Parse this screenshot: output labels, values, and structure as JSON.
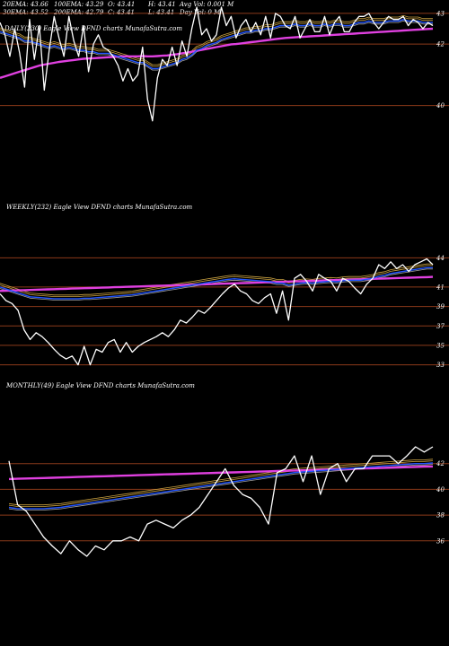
{
  "header": {
    "row1": [
      "20EMA: 43.66",
      "100EMA: 43.29",
      "O: 43.41",
      "H: 43.41",
      "Avg Vol: 0.001 M"
    ],
    "row2": [
      "30EMA: 43.52",
      "200EMA: 42.79",
      "C: 43.41",
      "L: 43.41",
      "Day Vol: 0  M"
    ]
  },
  "colors": {
    "background": "#000000",
    "price": "#ffffff",
    "ema20": "#2255ff",
    "ema200": "#e040e0",
    "gridline": "#8b3a1a",
    "ema_other": "#c8a040"
  },
  "chart_data": [
    {
      "type": "line",
      "title": "DAILY(230) Eagle  View  DFND charts MunafaSutra.com",
      "yticks": [
        43,
        42,
        40
      ],
      "ylim": [
        39.2,
        43.2
      ],
      "price": [
        42.7,
        42.3,
        41.6,
        42.5,
        41.7,
        40.6,
        42.8,
        41.5,
        42.6,
        40.5,
        41.8,
        42.9,
        42.2,
        41.6,
        42.9,
        42.1,
        41.6,
        42.6,
        41.1,
        42.0,
        42.3,
        41.9,
        41.8,
        41.6,
        41.3,
        40.8,
        41.2,
        40.8,
        41.0,
        41.9,
        40.2,
        39.5,
        40.9,
        41.5,
        41.3,
        41.9,
        41.3,
        42.1,
        41.6,
        42.5,
        43.2,
        42.3,
        42.5,
        42.1,
        42.3,
        43.2,
        42.6,
        42.9,
        42.2,
        42.6,
        42.8,
        42.4,
        42.7,
        42.3,
        42.9,
        42.2,
        43.0,
        42.9,
        42.6,
        42.5,
        42.9,
        42.2,
        42.5,
        42.8,
        42.4,
        42.4,
        42.9,
        42.3,
        42.7,
        42.9,
        42.4,
        42.4,
        42.7,
        42.9,
        42.9,
        43.0,
        42.7,
        42.5,
        42.7,
        42.9,
        42.8,
        42.8,
        42.9,
        42.6,
        42.8,
        42.7,
        42.5,
        42.7,
        42.6
      ],
      "ema20": [
        42.4,
        42.35,
        42.3,
        42.25,
        42.2,
        42.1,
        42.1,
        42.05,
        42.0,
        41.95,
        41.9,
        41.95,
        41.9,
        41.85,
        41.9,
        41.85,
        41.8,
        41.8,
        41.75,
        41.75,
        41.7,
        41.7,
        41.7,
        41.65,
        41.6,
        41.55,
        41.5,
        41.45,
        41.4,
        41.4,
        41.3,
        41.2,
        41.2,
        41.25,
        41.3,
        41.35,
        41.4,
        41.5,
        41.55,
        41.65,
        41.8,
        41.85,
        41.95,
        42.0,
        42.05,
        42.15,
        42.2,
        42.25,
        42.3,
        42.35,
        42.4,
        42.4,
        42.45,
        42.45,
        42.5,
        42.5,
        42.55,
        42.6,
        42.6,
        42.6,
        42.65,
        42.6,
        42.6,
        42.65,
        42.6,
        42.6,
        42.65,
        42.6,
        42.65,
        42.65,
        42.6,
        42.6,
        42.65,
        42.7,
        42.7,
        42.75,
        42.7,
        42.7,
        42.7,
        42.75,
        42.75,
        42.75,
        42.8,
        42.75,
        42.75,
        42.75,
        42.7,
        42.7,
        42.7
      ],
      "ema200": [
        40.9,
        40.95,
        41.0,
        41.05,
        41.1,
        41.15,
        41.2,
        41.25,
        41.3,
        41.33,
        41.36,
        41.39,
        41.42,
        41.44,
        41.46,
        41.48,
        41.5,
        41.52,
        41.53,
        41.54,
        41.55,
        41.56,
        41.57,
        41.58,
        41.59,
        41.6,
        41.6,
        41.6,
        41.6,
        41.61,
        41.6,
        41.6,
        41.61,
        41.62,
        41.63,
        41.65,
        41.67,
        41.7,
        41.72,
        41.75,
        41.78,
        41.81,
        41.84,
        41.87,
        41.9,
        41.93,
        41.96,
        41.99,
        42.0,
        42.02,
        42.04,
        42.06,
        42.08,
        42.1,
        42.12,
        42.14,
        42.16,
        42.18,
        42.2,
        42.21,
        42.22,
        42.23,
        42.24,
        42.25,
        42.26,
        42.27,
        42.28,
        42.29,
        42.3,
        42.31,
        42.32,
        42.33,
        42.34,
        42.35,
        42.36,
        42.37,
        42.38,
        42.39,
        42.4,
        42.41,
        42.42,
        42.43,
        42.44,
        42.45,
        42.46,
        42.47,
        42.48,
        42.49,
        42.5
      ]
    },
    {
      "type": "line",
      "title": "WEEKLY(232) Eagle  View  DFND charts MunafaSutra.com",
      "yticks": [
        44,
        41,
        39,
        37,
        35,
        33
      ],
      "ylim": [
        32.5,
        44.5
      ],
      "price": [
        40.3,
        39.6,
        39.3,
        38.6,
        36.6,
        35.6,
        36.3,
        35.9,
        35.3,
        34.6,
        34.0,
        33.6,
        33.9,
        33.0,
        34.9,
        33.0,
        34.6,
        34.3,
        35.3,
        35.6,
        34.3,
        35.3,
        34.3,
        34.9,
        35.3,
        35.6,
        35.9,
        36.3,
        35.9,
        36.6,
        37.6,
        37.3,
        37.9,
        38.6,
        38.3,
        38.9,
        39.6,
        40.3,
        40.9,
        41.3,
        40.6,
        40.3,
        39.6,
        39.3,
        39.9,
        40.3,
        38.3,
        40.6,
        37.6,
        41.9,
        42.3,
        41.6,
        40.6,
        42.3,
        41.9,
        41.6,
        40.6,
        41.9,
        41.6,
        40.9,
        40.3,
        41.3,
        41.9,
        43.3,
        42.9,
        43.6,
        42.9,
        43.3,
        42.6,
        43.3,
        43.6,
        43.9,
        43.3
      ],
      "ema20": [
        41.0,
        40.8,
        40.6,
        40.4,
        40.2,
        40.0,
        39.95,
        39.9,
        39.85,
        39.8,
        39.8,
        39.8,
        39.8,
        39.8,
        39.85,
        39.85,
        39.9,
        39.95,
        40.0,
        40.05,
        40.1,
        40.15,
        40.2,
        40.3,
        40.4,
        40.5,
        40.6,
        40.7,
        40.8,
        40.9,
        41.0,
        41.1,
        41.2,
        41.3,
        41.4,
        41.5,
        41.6,
        41.7,
        41.8,
        41.85,
        41.8,
        41.75,
        41.7,
        41.65,
        41.6,
        41.55,
        41.4,
        41.4,
        41.2,
        41.3,
        41.4,
        41.45,
        41.4,
        41.5,
        41.55,
        41.6,
        41.55,
        41.65,
        41.7,
        41.7,
        41.7,
        41.8,
        41.9,
        42.1,
        42.2,
        42.4,
        42.5,
        42.6,
        42.7,
        42.8,
        42.9,
        43.0,
        43.0
      ],
      "ema200": [
        40.6,
        40.62,
        40.64,
        40.66,
        40.68,
        40.7,
        40.72,
        40.74,
        40.76,
        40.78,
        40.8,
        40.82,
        40.84,
        40.86,
        40.88,
        40.9,
        40.92,
        40.94,
        40.96,
        40.98,
        41.0,
        41.02,
        41.04,
        41.06,
        41.08,
        41.1,
        41.12,
        41.14,
        41.16,
        41.18,
        41.2,
        41.22,
        41.24,
        41.26,
        41.28,
        41.3,
        41.32,
        41.34,
        41.36,
        41.38,
        41.4,
        41.42,
        41.44,
        41.46,
        41.48,
        41.5,
        41.52,
        41.54,
        41.56,
        41.58,
        41.6,
        41.62,
        41.64,
        41.66,
        41.68,
        41.7,
        41.72,
        41.74,
        41.76,
        41.78,
        41.8,
        41.82,
        41.84,
        41.86,
        41.88,
        41.9,
        41.92,
        41.94,
        41.96,
        41.98,
        42.0,
        42.02,
        42.04
      ]
    },
    {
      "type": "line",
      "title": "MONTHLY(49) Eagle  View  DFND charts MunafaSutra.com",
      "yticks": [
        42,
        40,
        38,
        36
      ],
      "ylim": [
        34.8,
        44.0
      ],
      "price": [
        42.2,
        38.8,
        38.3,
        37.3,
        36.3,
        35.6,
        35.0,
        36.0,
        35.3,
        34.8,
        35.6,
        35.3,
        36.0,
        36.0,
        36.3,
        36.0,
        37.3,
        37.6,
        37.3,
        37.0,
        37.6,
        38.0,
        38.6,
        39.6,
        40.6,
        41.6,
        40.3,
        39.6,
        39.3,
        38.6,
        37.3,
        41.3,
        41.6,
        42.6,
        40.6,
        42.6,
        39.6,
        41.6,
        42.0,
        40.6,
        41.6,
        41.6,
        42.6,
        42.6,
        42.6,
        42.0,
        42.6,
        43.3,
        42.9,
        43.3
      ],
      "ema20": [
        38.6,
        38.5,
        38.5,
        38.5,
        38.5,
        38.55,
        38.6,
        38.7,
        38.8,
        38.9,
        39.0,
        39.1,
        39.2,
        39.3,
        39.4,
        39.5,
        39.6,
        39.7,
        39.8,
        39.9,
        40.0,
        40.1,
        40.2,
        40.3,
        40.4,
        40.5,
        40.6,
        40.7,
        40.8,
        40.9,
        41.0,
        41.1,
        41.2,
        41.3,
        41.35,
        41.4,
        41.45,
        41.5,
        41.55,
        41.6,
        41.65,
        41.7,
        41.75,
        41.8,
        41.85,
        41.9,
        41.95,
        42.0,
        42.0,
        42.05
      ],
      "ema200": [
        40.8,
        40.82,
        40.84,
        40.86,
        40.88,
        40.9,
        40.92,
        40.94,
        40.96,
        40.98,
        41.0,
        41.02,
        41.04,
        41.06,
        41.08,
        41.1,
        41.12,
        41.14,
        41.16,
        41.18,
        41.2,
        41.22,
        41.24,
        41.26,
        41.28,
        41.3,
        41.32,
        41.34,
        41.36,
        41.38,
        41.4,
        41.42,
        41.44,
        41.46,
        41.48,
        41.5,
        41.52,
        41.54,
        41.56,
        41.58,
        41.6,
        41.62,
        41.64,
        41.66,
        41.68,
        41.7,
        41.72,
        41.74,
        41.76,
        41.78
      ]
    }
  ]
}
